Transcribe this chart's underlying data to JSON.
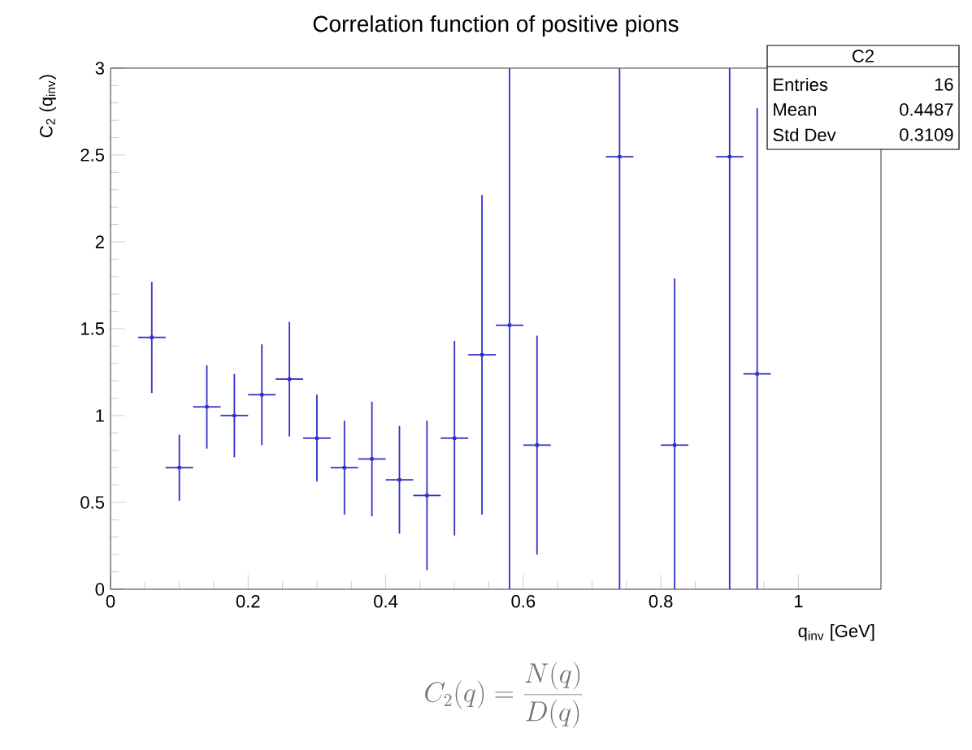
{
  "chart_data": {
    "type": "scatter",
    "title": "Correlation function of positive pions",
    "xlabel": "q$_{inv}$ [GeV]",
    "ylabel": "C$_{2}$ (q$_{inv}$)",
    "x": [
      0.06,
      0.1,
      0.14,
      0.18,
      0.22,
      0.26,
      0.3,
      0.34,
      0.38,
      0.42,
      0.46,
      0.5,
      0.54,
      0.58,
      0.62,
      0.74,
      0.82,
      0.9,
      0.94
    ],
    "values": [
      1.45,
      0.7,
      1.05,
      1.0,
      1.12,
      1.21,
      0.87,
      0.7,
      0.75,
      0.63,
      0.54,
      0.87,
      1.35,
      1.52,
      0.83,
      2.49,
      0.83,
      2.49,
      1.24
    ],
    "errors": [
      0.32,
      0.19,
      0.24,
      0.24,
      0.29,
      0.33,
      0.25,
      0.27,
      0.33,
      0.31,
      0.43,
      0.56,
      0.92,
      [
        0,
        3
      ],
      0.63,
      [
        0,
        3
      ],
      [
        0,
        1.79
      ],
      [
        0,
        3
      ],
      [
        0,
        2.77
      ]
    ],
    "xerrors": [
      0.02,
      0.02,
      0.02,
      0.02,
      0.02,
      0.02,
      0.02,
      0.02,
      0.02,
      0.02,
      0.02,
      0.02,
      0.02,
      0.02,
      0.02,
      0.02,
      0.02,
      0.02,
      0.02
    ],
    "color": "#3030c8",
    "xlim": [
      0,
      1.12
    ],
    "ylim": [
      0,
      3
    ],
    "xticks": [
      0,
      0.2,
      0.4,
      0.6,
      0.8,
      1
    ],
    "yticks": [
      0,
      0.5,
      1,
      1.5,
      2,
      2.5,
      3
    ],
    "annotations": [
      "C2",
      "Entries",
      "16",
      "Mean",
      "0.4487",
      "Std Dev",
      "0.3109",
      "C_2(q) = \\frac{N(q)}{D(q)}"
    ]
  }
}
